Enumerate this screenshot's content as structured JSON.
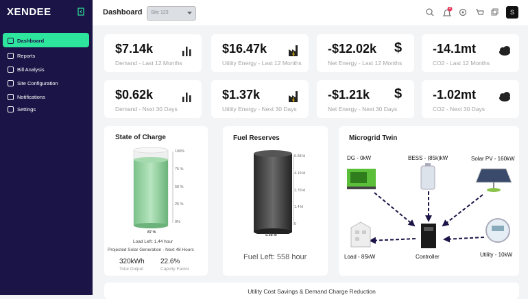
{
  "sidebar": {
    "logo": "XENDEE",
    "menu": [
      "Dashboard",
      "Reports",
      "Bill Analysis",
      "Site Configuration",
      "Notifications",
      "Settings"
    ]
  },
  "header": {
    "title": "Dashboard",
    "site": "Site 123",
    "badge": "3",
    "avatar": "S"
  },
  "kpis": [
    {
      "value": "$7.14k",
      "label": "Demand - Last 12 Months"
    },
    {
      "value": "$16.47k",
      "label": "Utility Energy - Last 12 Months"
    },
    {
      "value": "-$12.02k",
      "label": "Net Energy - Last 12 Months",
      "icon": "$"
    },
    {
      "value": "-14.1mt",
      "label": "CO2 - Last 12 Months"
    },
    {
      "value": "$0.62k",
      "label": "Demand - Next 30 Days"
    },
    {
      "value": "$1.37k",
      "label": "Utility Energy - Next 30 Days"
    },
    {
      "value": "-$1.21k",
      "label": "Net Energy - Next 30 Days",
      "icon": "$"
    },
    {
      "value": "-1.02mt",
      "label": "CO2 - Next 30 Days"
    }
  ],
  "charge": {
    "title": "State of Charge",
    "ticks": [
      "100%",
      "75 %",
      "50 %",
      "25 %",
      "0%"
    ],
    "level": "87 %",
    "load_left": "Load Left: 1.44 hour",
    "projection": "Projected Solar Generation - Next 48 Hours",
    "output": "320kWh",
    "output_label": "Total Output",
    "factor": "22.6%",
    "factor_label": "Capcity Factor"
  },
  "fuel": {
    "title": "Fuel Reserves",
    "ticks": [
      "5.58 kl",
      "4.19 kl",
      "2.79 kl",
      "1.4 kl",
      "0"
    ],
    "level": "5.58 kl",
    "left": "Fuel Left: 558 hour"
  },
  "microgrid": {
    "title": "Microgrid Twin",
    "nodes": [
      "DG - 0kW",
      "BESS - (85k)kW",
      "Solar PV - 160kW",
      "Load - 85kW",
      "Controller",
      "Utility - 10kW"
    ]
  },
  "footer": {
    "title": "Utility Cost Savings & Demand Charge Reduction"
  }
}
